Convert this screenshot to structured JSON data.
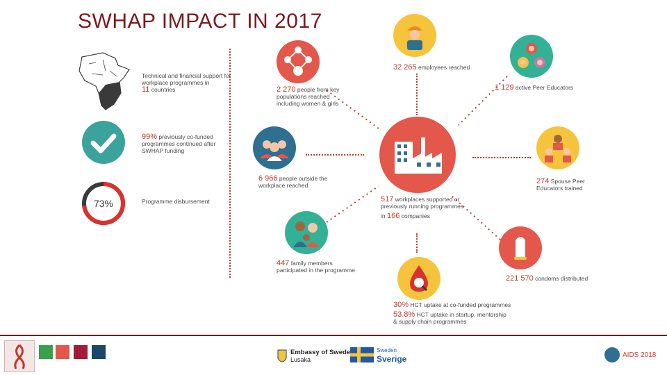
{
  "title": "SWHAP IMPACT IN 2017",
  "left": {
    "africa_text": "Technical and financial support for workplace programmes in",
    "africa_num": "11",
    "africa_tail": "countries",
    "check_num": "99%",
    "check_text": "previously co-funded programmes continued after SWHAP funding",
    "donut_value": "73%",
    "donut_fraction": 0.73,
    "donut_label": "Programme disbursement"
  },
  "stats": {
    "key_pop_num": "2 270",
    "key_pop_text": "people from key populations reached including women & girls",
    "outside_num": "6 966",
    "outside_text": "people outside the workplace reached",
    "family_num": "447",
    "family_text": "family members participated in the programme",
    "employees_num": "32 265",
    "employees_text": "employees reached",
    "peer_num": "1 129",
    "peer_text": "active Peer Educators",
    "spouse_num": "274",
    "spouse_text": "Spouse Peer Educators trained",
    "workplaces_num": "517",
    "workplaces_text": "workplaces supported or previously running programmes",
    "in_text": "in",
    "companies_num": "166",
    "companies_text": "companies",
    "condoms_num": "221 570",
    "condoms_text": "condoms distributed",
    "hct1_num": "30%",
    "hct1_text": "HCT uptake at co-funded programmes",
    "hct2_num": "53.8%",
    "hct2_text": "HCT uptake in startup, mentorship & supply chain programmes"
  },
  "footer": {
    "embassy": "Embassy of Sweden",
    "embassy_city": "Lusaka",
    "sweden_small": "Sweden",
    "sverige": "Sverige",
    "aids": "AIDS 2018"
  },
  "colors": {
    "accent_red": "#e4574b",
    "teal": "#3aa39b",
    "dark_teal": "#2f6f8f",
    "yellow": "#f6c33c",
    "green": "#33b197",
    "maroon": "#7a1a1f"
  }
}
